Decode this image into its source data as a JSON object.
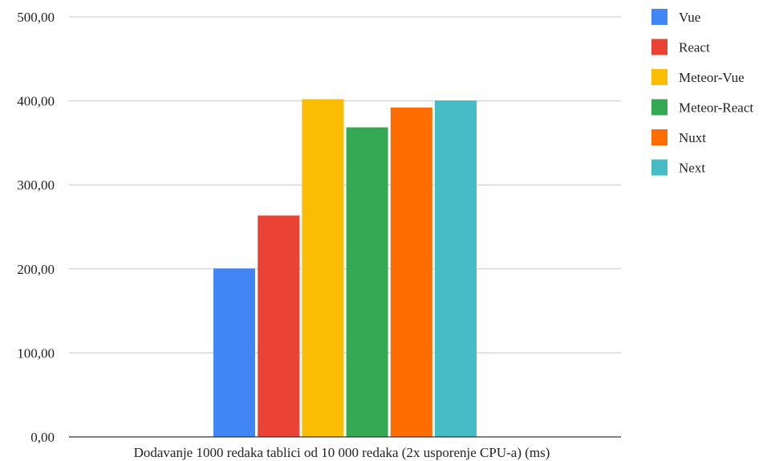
{
  "chart_data": {
    "type": "bar",
    "title": "",
    "xlabel": "Dodavanje 1000 redaka tablici od 10 000 redaka (2x usporenje CPU-a) (ms)",
    "ylabel": "",
    "ylim": [
      0,
      500
    ],
    "yticks": [
      0,
      100,
      200,
      300,
      400,
      500
    ],
    "ytick_labels": [
      "0,00",
      "100,00",
      "200,00",
      "300,00",
      "400,00",
      "500,00"
    ],
    "grid": true,
    "legend_position": "right",
    "categories": [
      "Dodavanje 1000 redaka tablici od 10 000 redaka (2x usporenje CPU-a) (ms)"
    ],
    "series": [
      {
        "name": "Vue",
        "color": "#4285F4",
        "values": [
          200.5
        ]
      },
      {
        "name": "React",
        "color": "#EA4335",
        "values": [
          263.5
        ]
      },
      {
        "name": "Meteor-Vue",
        "color": "#FBBC04",
        "values": [
          402.0
        ]
      },
      {
        "name": "Meteor-React",
        "color": "#34A853",
        "values": [
          368.5
        ]
      },
      {
        "name": "Nuxt",
        "color": "#FF6D01",
        "values": [
          392.0
        ]
      },
      {
        "name": "Next",
        "color": "#46BDC6",
        "values": [
          400.5
        ]
      }
    ]
  }
}
